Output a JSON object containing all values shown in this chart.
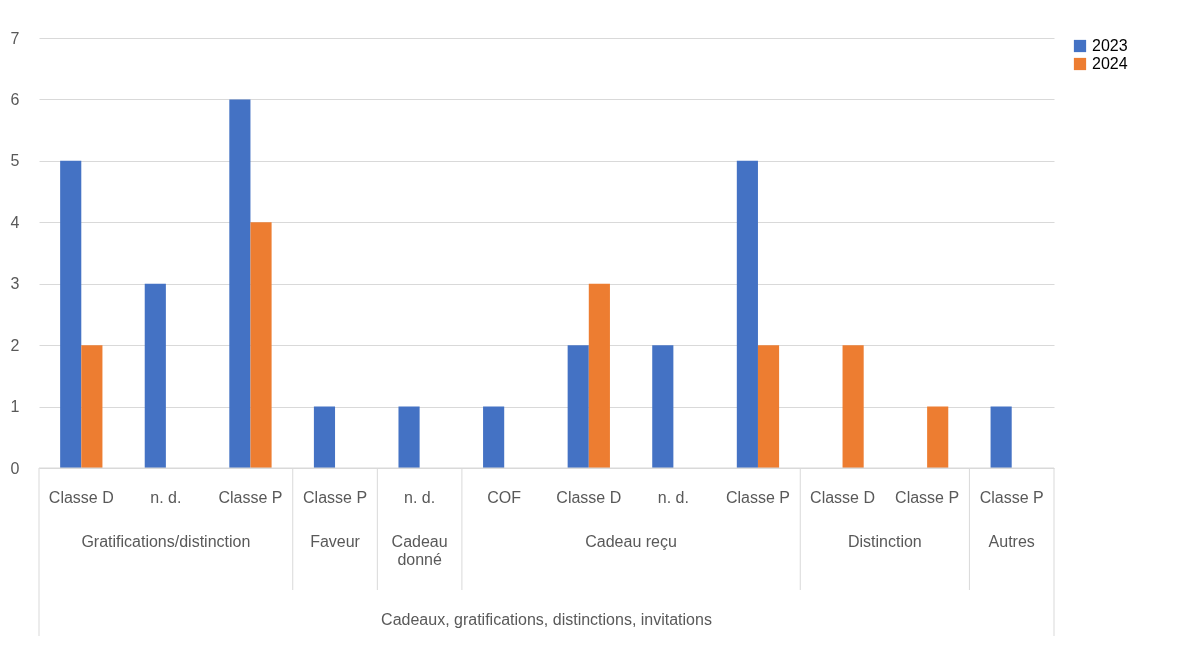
{
  "chart_data": {
    "type": "bar",
    "categories": [
      "Classe D",
      "n. d.",
      "Classe P",
      "Classe P",
      "n. d.",
      "COF",
      "Classe D",
      "n. d.",
      "Classe P",
      "Classe D",
      "Classe P",
      "Classe P"
    ],
    "series": [
      {
        "name": "2023",
        "color": "#4472c4",
        "values": [
          5,
          3,
          6,
          1,
          1,
          1,
          2,
          2,
          5,
          null,
          null,
          1
        ]
      },
      {
        "name": "2024",
        "color": "#ed7d31",
        "values": [
          2,
          null,
          4,
          null,
          null,
          null,
          3,
          null,
          2,
          2,
          1,
          null
        ]
      }
    ],
    "annotations": [
      "Gratifications/distinction",
      "Faveur",
      "Cadeau\ndonné",
      "Cadeau reçu",
      "Distinction",
      "Autres",
      "Cadeaux, gratifications, distinctions, invitations"
    ],
    "ylim": [
      0,
      7
    ],
    "yticks": [
      0,
      1,
      2,
      3,
      4,
      5,
      6,
      7
    ],
    "grid": "y",
    "legend": "right"
  }
}
